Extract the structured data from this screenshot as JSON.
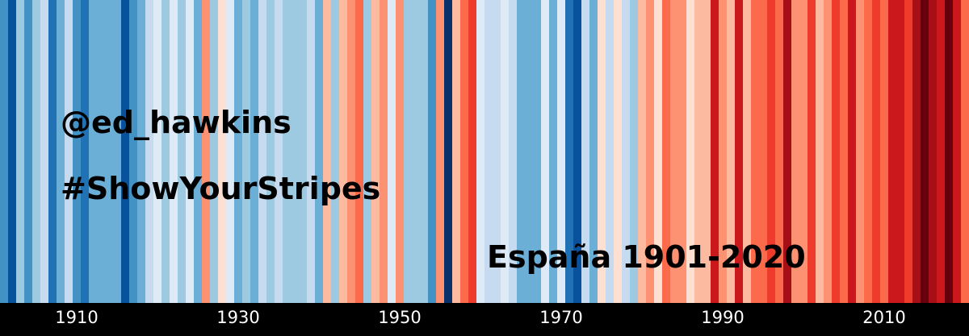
{
  "overlay": {
    "handle": "@ed_hawkins",
    "hashtag": "#ShowYourStripes",
    "region_label": "España 1901-2020"
  },
  "colors": {
    "palette": [
      "#08306b",
      "#08519c",
      "#2171b5",
      "#4292c6",
      "#6baed6",
      "#9ecae1",
      "#c6dbef",
      "#deebf7",
      "#fee0d2",
      "#fcbba1",
      "#fc9272",
      "#fb6a4a",
      "#ef3b2c",
      "#cb181d",
      "#a50f15",
      "#67000d"
    ],
    "background": "#000000",
    "tick_text": "#ffffff"
  },
  "chart_data": {
    "type": "heatmap",
    "start_year": 1901,
    "end_year": 2020,
    "x_ticks": [
      "1910",
      "1930",
      "1950",
      "1970",
      "1990",
      "2010"
    ],
    "stripe_levels": [
      3,
      1,
      5,
      3,
      5,
      6,
      2,
      4,
      6,
      3,
      2,
      4,
      4,
      4,
      4,
      1,
      3,
      4,
      6,
      7,
      5,
      7,
      5,
      7,
      4,
      10,
      5,
      8,
      7,
      4,
      5,
      4,
      6,
      5,
      6,
      5,
      5,
      5,
      6,
      4,
      9,
      5,
      9,
      10,
      11,
      5,
      9,
      10,
      7,
      10,
      5,
      5,
      5,
      3,
      10,
      0,
      9,
      11,
      12,
      7,
      6,
      6,
      7,
      6,
      4,
      4,
      4,
      7,
      4,
      7,
      2,
      1,
      6,
      4,
      8,
      6,
      8,
      6,
      5,
      9,
      10,
      8,
      11,
      10,
      10,
      8,
      9,
      9,
      13,
      10,
      9,
      13,
      9,
      11,
      11,
      12,
      11,
      14,
      10,
      10,
      12,
      9,
      10,
      12,
      11,
      13,
      10,
      11,
      12,
      11,
      13,
      13,
      12,
      14,
      15,
      14,
      13,
      15,
      13,
      11
    ],
    "legend": "none",
    "grid": "off"
  }
}
